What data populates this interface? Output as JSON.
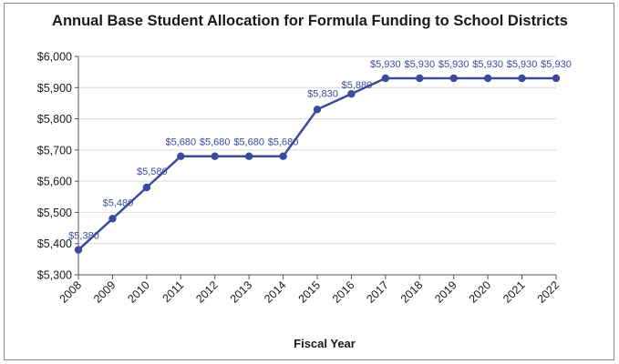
{
  "chart_data": {
    "type": "line",
    "title": "Annual Base Student Allocation for Formula Funding to School Districts",
    "xlabel": "Fiscal Year",
    "ylabel": "",
    "x": [
      "2008",
      "2009",
      "2010",
      "2011",
      "2012",
      "2013",
      "2014",
      "2015",
      "2016",
      "2017",
      "2018",
      "2019",
      "2020",
      "2021",
      "2022"
    ],
    "series": [
      {
        "values": [
          5380,
          5480,
          5580,
          5680,
          5680,
          5680,
          5680,
          5830,
          5880,
          5930,
          5930,
          5930,
          5930,
          5930,
          5930
        ]
      }
    ],
    "data_labels": [
      "$5,380",
      "$5,480",
      "$5,580",
      "$5,680",
      "$5,680",
      "$5,680",
      "$5,680",
      "$5,830",
      "$5,880",
      "$5,930",
      "$5,930",
      "$5,930",
      "$5,930",
      "$5,930",
      "$5,930"
    ],
    "ylim": [
      5300,
      6000
    ],
    "yticks": [
      5300,
      5400,
      5500,
      5600,
      5700,
      5800,
      5900,
      6000
    ],
    "ytick_labels": [
      "$5,300",
      "$5,400",
      "$5,500",
      "$5,600",
      "$5,700",
      "$5,800",
      "$5,900",
      "$6,000"
    ],
    "grid": true,
    "legend": "none",
    "line_color": "#3b4a9a",
    "grid_color": "#d9d9d9"
  }
}
